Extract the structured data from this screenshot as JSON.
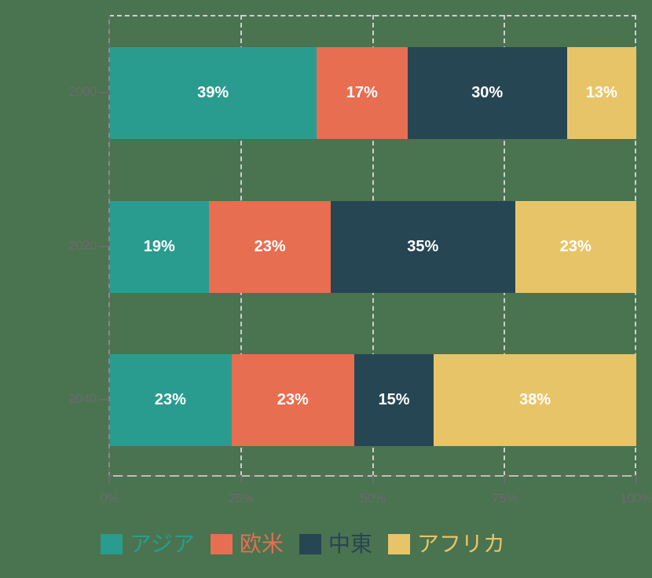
{
  "chart_data": {
    "type": "bar",
    "orientation": "horizontal",
    "stacked": true,
    "normalized": true,
    "title": "",
    "xlabel": "",
    "ylabel": "",
    "categories": [
      "2000",
      "2020",
      "2040"
    ],
    "series": [
      {
        "name": "アジア",
        "color": "#2a9c8f",
        "values": [
          39,
          19,
          23
        ]
      },
      {
        "name": "欧米",
        "color": "#e76e51",
        "values": [
          17,
          23,
          23
        ]
      },
      {
        "name": "中東",
        "color": "#274654",
        "values": [
          30,
          35,
          15
        ]
      },
      {
        "name": "アフリカ",
        "color": "#e8c468",
        "values": [
          13,
          23,
          38
        ]
      }
    ],
    "data_labels": [
      [
        "39%",
        "17%",
        "30%",
        "13%"
      ],
      [
        "19%",
        "23%",
        "35%",
        "23%"
      ],
      [
        "23%",
        "23%",
        "15%",
        "38%"
      ]
    ],
    "x_ticks": [
      "0%",
      "25%",
      "50%",
      "75%",
      "100%"
    ],
    "xlim": [
      0,
      100
    ],
    "grid": {
      "vertical": true,
      "style": "dashed"
    },
    "legend_position": "bottom"
  },
  "axis": {
    "x_ticks": [
      {
        "label": "0%",
        "pct": 0
      },
      {
        "label": "25%",
        "pct": 25
      },
      {
        "label": "50%",
        "pct": 50
      },
      {
        "label": "75%",
        "pct": 75
      },
      {
        "label": "100%",
        "pct": 100
      }
    ],
    "y_ticks": [
      "2000",
      "2020",
      "2040"
    ]
  },
  "legend": [
    {
      "label": "アジア",
      "color": "#2a9c8f"
    },
    {
      "label": "欧米",
      "color": "#e76e51"
    },
    {
      "label": "中東",
      "color": "#274654"
    },
    {
      "label": "アフリカ",
      "color": "#e8c468"
    }
  ],
  "colors": {
    "background": "#4a7350",
    "grid": "#cfcfcf",
    "axis": "#6b6b6b",
    "label_text": "#ffffff"
  }
}
